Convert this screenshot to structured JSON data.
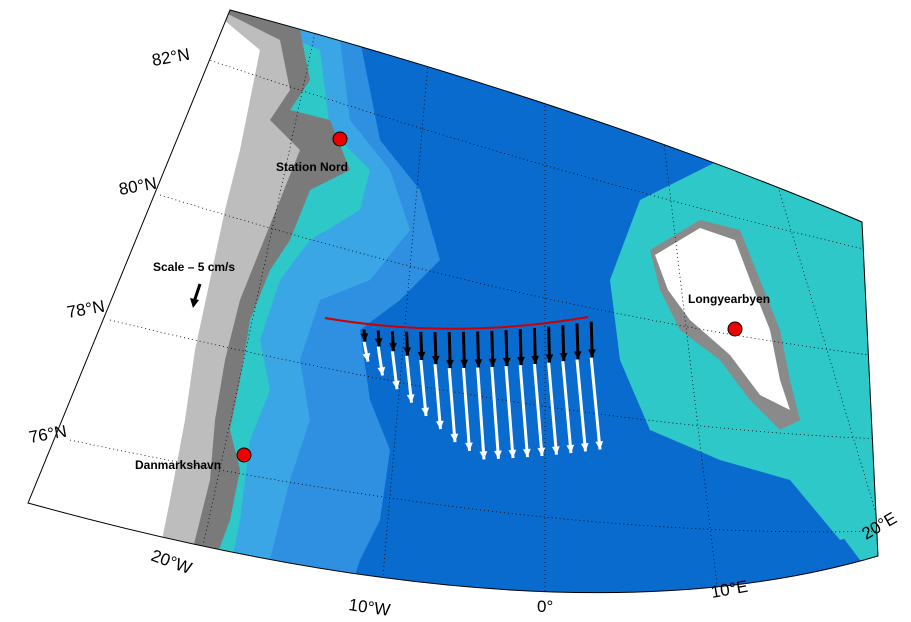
{
  "lat_labels": [
    "82°N",
    "80°N",
    "78°N",
    "76°N"
  ],
  "lon_labels": [
    "20°W",
    "10°W",
    "0°",
    "10°E",
    "20°E"
  ],
  "places": [
    "Station Nord",
    "Longyearbyen",
    "Danmarkshavn"
  ],
  "scale_label": "Scale – 5 cm/s"
}
